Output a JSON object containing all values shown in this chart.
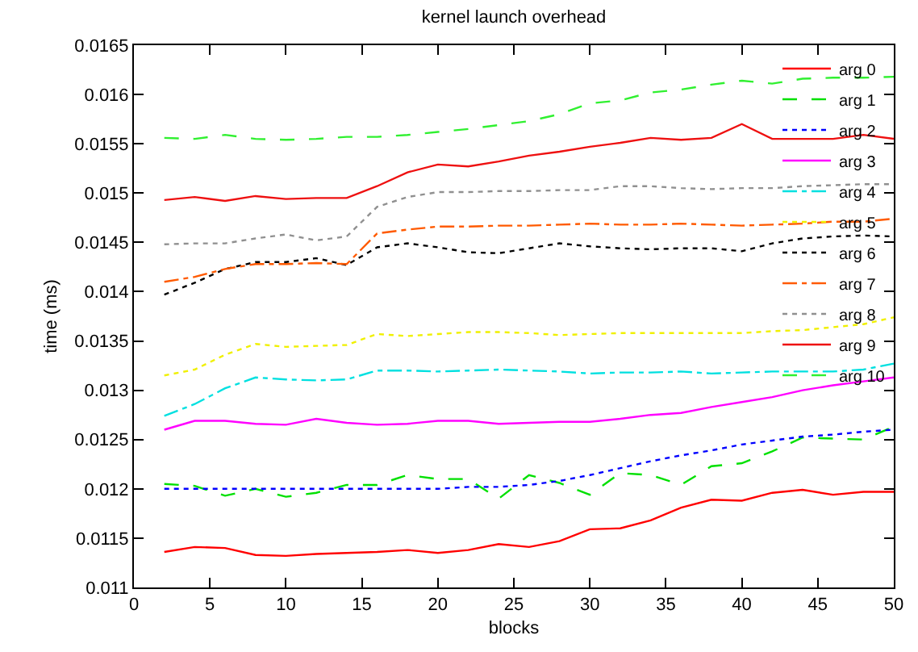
{
  "chart_data": {
    "type": "line",
    "title": "kernel launch overhead",
    "xlabel": "blocks",
    "ylabel": "time (ms)",
    "x": [
      2,
      4,
      6,
      8,
      10,
      12,
      14,
      16,
      18,
      20,
      22,
      24,
      26,
      28,
      30,
      32,
      34,
      36,
      38,
      40,
      42,
      44,
      46,
      48,
      50
    ],
    "xlim": [
      0,
      50
    ],
    "xticks": [
      0,
      5,
      10,
      15,
      20,
      25,
      30,
      35,
      40,
      45,
      50
    ],
    "ylim": [
      0.011,
      0.0165
    ],
    "yticks": [
      0.011,
      0.0115,
      0.012,
      0.0125,
      0.013,
      0.0135,
      0.014,
      0.0145,
      0.015,
      0.0155,
      0.016,
      0.0165
    ],
    "legend": "top right",
    "marker": "none",
    "series": [
      {
        "name": "arg 0",
        "color": "#ff0000",
        "line_style": "solid",
        "values": [
          0.01136,
          0.01141,
          0.0114,
          0.01133,
          0.01132,
          0.01134,
          0.01135,
          0.01136,
          0.01138,
          0.01135,
          0.01138,
          0.01144,
          0.01141,
          0.01147,
          0.01159,
          0.0116,
          0.01168,
          0.01181,
          0.01189,
          0.01188,
          0.01196,
          0.01199,
          0.01194,
          0.01197,
          0.01197
        ]
      },
      {
        "name": "arg 1",
        "color": "#00e000",
        "line_style": "dashed",
        "values": [
          0.01205,
          0.01203,
          0.01193,
          0.012,
          0.01192,
          0.01196,
          0.01204,
          0.01204,
          0.01214,
          0.0121,
          0.0121,
          0.0119,
          0.01214,
          0.01206,
          0.01194,
          0.01216,
          0.01214,
          0.01204,
          0.01223,
          0.01226,
          0.01238,
          0.01252,
          0.01251,
          0.0125,
          0.01263
        ]
      },
      {
        "name": "arg 2",
        "color": "#0000ff",
        "line_style": "dotted",
        "values": [
          0.012,
          0.012,
          0.012,
          0.012,
          0.012,
          0.012,
          0.012,
          0.012,
          0.012,
          0.012,
          0.01202,
          0.01202,
          0.01204,
          0.01208,
          0.01214,
          0.01221,
          0.01228,
          0.01234,
          0.01239,
          0.01245,
          0.01249,
          0.01253,
          0.01255,
          0.01258,
          0.0126
        ]
      },
      {
        "name": "arg 3",
        "color": "#ff00ff",
        "line_style": "solid",
        "values": [
          0.0126,
          0.01269,
          0.01269,
          0.01266,
          0.01265,
          0.01271,
          0.01267,
          0.01265,
          0.01266,
          0.01269,
          0.01269,
          0.01266,
          0.01267,
          0.01268,
          0.01268,
          0.01271,
          0.01275,
          0.01277,
          0.01283,
          0.01288,
          0.01293,
          0.013,
          0.01305,
          0.01309,
          0.01313
        ]
      },
      {
        "name": "arg 4",
        "color": "#00e0e0",
        "line_style": "dashdot",
        "values": [
          0.01274,
          0.01286,
          0.01302,
          0.01313,
          0.01311,
          0.0131,
          0.01311,
          0.0132,
          0.0132,
          0.01319,
          0.0132,
          0.01321,
          0.0132,
          0.01319,
          0.01317,
          0.01318,
          0.01318,
          0.01319,
          0.01317,
          0.01318,
          0.01319,
          0.01319,
          0.01319,
          0.01321,
          0.01327
        ]
      },
      {
        "name": "arg 5",
        "color": "#f0f000",
        "line_style": "dotted",
        "values": [
          0.01315,
          0.01321,
          0.01336,
          0.01347,
          0.01344,
          0.01345,
          0.01346,
          0.01357,
          0.01355,
          0.01357,
          0.01359,
          0.01359,
          0.01358,
          0.01356,
          0.01357,
          0.01358,
          0.01358,
          0.01358,
          0.01358,
          0.01358,
          0.0136,
          0.01361,
          0.01364,
          0.01367,
          0.01374
        ]
      },
      {
        "name": "arg 6",
        "color": "#000000",
        "line_style": "dotted",
        "values": [
          0.01397,
          0.01409,
          0.01423,
          0.0143,
          0.0143,
          0.01434,
          0.01427,
          0.01445,
          0.01449,
          0.01445,
          0.0144,
          0.01439,
          0.01444,
          0.01449,
          0.01446,
          0.01444,
          0.01443,
          0.01444,
          0.01444,
          0.01441,
          0.01449,
          0.01454,
          0.01456,
          0.01457,
          0.01456
        ]
      },
      {
        "name": "arg 7",
        "color": "#ff5a00",
        "line_style": "dashdot",
        "values": [
          0.0141,
          0.01415,
          0.01423,
          0.01428,
          0.01428,
          0.01429,
          0.01428,
          0.01459,
          0.01463,
          0.01466,
          0.01466,
          0.01467,
          0.01467,
          0.01468,
          0.01469,
          0.01468,
          0.01468,
          0.01469,
          0.01468,
          0.01467,
          0.01468,
          0.01469,
          0.01471,
          0.01471,
          0.01474
        ]
      },
      {
        "name": "arg 8",
        "color": "#909090",
        "line_style": "dotted",
        "values": [
          0.01448,
          0.01449,
          0.01449,
          0.01454,
          0.01458,
          0.01452,
          0.01456,
          0.01486,
          0.01496,
          0.01501,
          0.01501,
          0.01502,
          0.01502,
          0.01503,
          0.01503,
          0.01507,
          0.01507,
          0.01505,
          0.01504,
          0.01505,
          0.01505,
          0.01507,
          0.01508,
          0.01509,
          0.01509
        ]
      },
      {
        "name": "arg 9",
        "color": "#ee1010",
        "line_style": "solid",
        "values": [
          0.01493,
          0.01496,
          0.01492,
          0.01497,
          0.01494,
          0.01495,
          0.01495,
          0.01507,
          0.01521,
          0.01529,
          0.01527,
          0.01532,
          0.01538,
          0.01542,
          0.01547,
          0.01551,
          0.01556,
          0.01554,
          0.01556,
          0.0157,
          0.01555,
          0.01555,
          0.01555,
          0.01559,
          0.01555
        ]
      },
      {
        "name": "arg 10",
        "color": "#30f030",
        "line_style": "dashed",
        "values": [
          0.01556,
          0.01555,
          0.01559,
          0.01555,
          0.01554,
          0.01555,
          0.01557,
          0.01557,
          0.01559,
          0.01562,
          0.01565,
          0.01569,
          0.01573,
          0.0158,
          0.01591,
          0.01594,
          0.01602,
          0.01605,
          0.0161,
          0.01614,
          0.01611,
          0.01616,
          0.01617,
          0.01617,
          0.01618
        ]
      }
    ]
  }
}
